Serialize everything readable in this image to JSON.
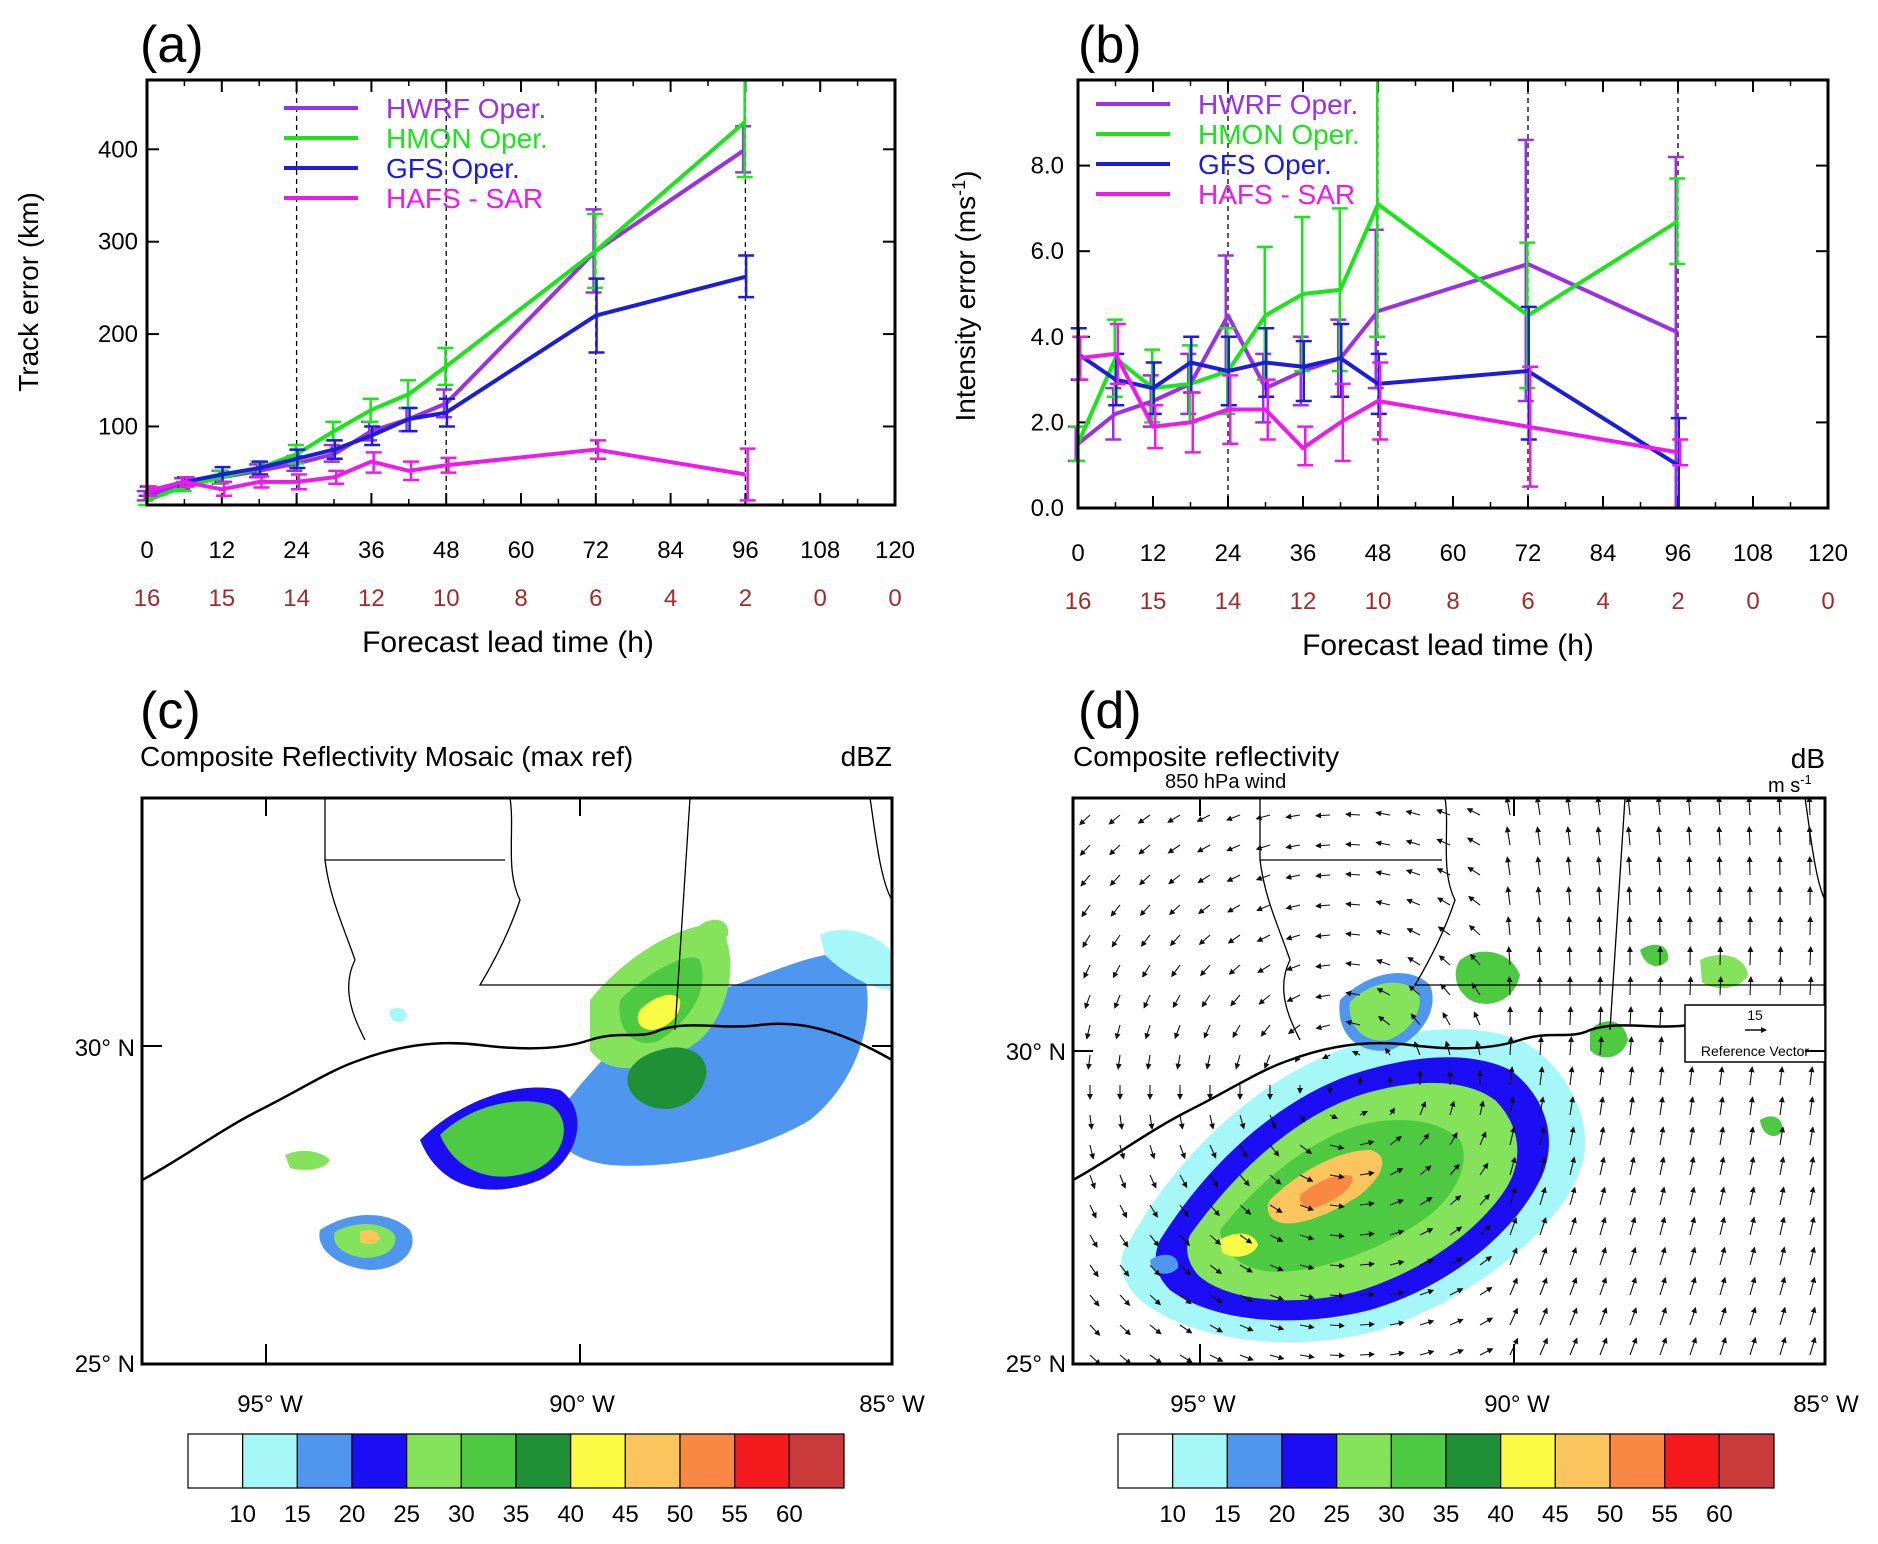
{
  "panels": {
    "a": {
      "label": "(a)"
    },
    "b": {
      "label": "(b)"
    },
    "c": {
      "label": "(c)",
      "title": "Composite Reflectivity Mosaic (max ref)",
      "units": "dBZ"
    },
    "d": {
      "label": "(d)",
      "title": "Composite reflectivity",
      "units": "dB",
      "subtitle": "850 hPa wind",
      "vector_units": "m s",
      "vector_units_exp": "-1",
      "ref_vector_value": "15",
      "ref_vector_label": "Reference Vector"
    }
  },
  "map": {
    "lat_labels": [
      "30° N",
      "25° N"
    ],
    "lon_labels": [
      "95° W",
      "90° W",
      "85° W"
    ],
    "colorbar": {
      "labels": [
        "10",
        "15",
        "20",
        "25",
        "30",
        "35",
        "40",
        "45",
        "50",
        "55",
        "60"
      ],
      "colors": [
        "#ffffff",
        "#a6f7f7",
        "#4f97ee",
        "#1c0ef4",
        "#84e35a",
        "#4dc942",
        "#1f9036",
        "#fbfa45",
        "#fbc45c",
        "#f98842",
        "#f4191c",
        "#cb3a3a"
      ]
    }
  },
  "chart_data": [
    {
      "id": "a",
      "type": "line",
      "x": [
        0,
        6,
        12,
        18,
        24,
        30,
        36,
        42,
        48,
        72,
        96
      ],
      "x_ticks": [
        "0",
        "12",
        "24",
        "36",
        "48",
        "60",
        "72",
        "84",
        "96",
        "108",
        "120"
      ],
      "x_tick_values": [
        0,
        12,
        24,
        36,
        48,
        60,
        72,
        84,
        96,
        108,
        120
      ],
      "case_counts": [
        "16",
        "15",
        "14",
        "12",
        "10",
        "8",
        "6",
        "4",
        "2",
        "0",
        "0"
      ],
      "xlim": [
        0,
        120
      ],
      "ylim": [
        15,
        475
      ],
      "y_ticks": [
        "100",
        "200",
        "300",
        "400"
      ],
      "y_tick_values": [
        100,
        200,
        300,
        400
      ],
      "xlabel": "Forecast lead time (h)",
      "ylabel": "Track error (km)",
      "dashed_x": [
        24,
        48,
        72,
        96
      ],
      "legend_position": "upper-left",
      "series": [
        {
          "name": "HWRF Oper.",
          "color": "#9b30e6",
          "values": [
            25,
            38,
            45,
            52,
            60,
            70,
            95,
            108,
            125,
            290,
            400
          ],
          "err_lo": [
            20,
            32,
            38,
            45,
            52,
            62,
            85,
            95,
            110,
            245,
            375
          ],
          "err_hi": [
            30,
            44,
            52,
            59,
            68,
            80,
            105,
            120,
            140,
            335,
            425
          ]
        },
        {
          "name": "HMON Oper.",
          "color": "#19e619",
          "values": [
            20,
            35,
            45,
            55,
            70,
            95,
            118,
            135,
            165,
            290,
            430
          ],
          "err_lo": [
            15,
            30,
            38,
            48,
            60,
            85,
            105,
            120,
            145,
            250,
            370
          ],
          "err_hi": [
            25,
            40,
            52,
            62,
            80,
            105,
            130,
            150,
            185,
            330,
            490
          ]
        },
        {
          "name": "GFS Oper.",
          "color": "#1c1cdc",
          "values": [
            30,
            40,
            48,
            55,
            65,
            75,
            90,
            108,
            115,
            220,
            262
          ],
          "err_lo": [
            25,
            35,
            40,
            48,
            55,
            65,
            80,
            95,
            100,
            180,
            240
          ],
          "err_hi": [
            35,
            45,
            56,
            62,
            75,
            85,
            100,
            120,
            130,
            260,
            285
          ]
        },
        {
          "name": "HAFS - SAR",
          "color": "#ee19ee",
          "values": [
            30,
            40,
            32,
            40,
            40,
            45,
            62,
            52,
            58,
            75,
            48
          ],
          "err_lo": [
            25,
            35,
            25,
            34,
            32,
            38,
            50,
            42,
            50,
            65,
            20
          ],
          "err_hi": [
            35,
            45,
            40,
            46,
            48,
            52,
            72,
            62,
            66,
            85,
            76
          ]
        }
      ]
    },
    {
      "id": "b",
      "type": "line",
      "x": [
        0,
        6,
        12,
        18,
        24,
        30,
        36,
        42,
        48,
        72,
        96
      ],
      "x_ticks": [
        "0",
        "12",
        "24",
        "36",
        "48",
        "60",
        "72",
        "84",
        "96",
        "108",
        "120"
      ],
      "x_tick_values": [
        0,
        12,
        24,
        36,
        48,
        60,
        72,
        84,
        96,
        108,
        120
      ],
      "case_counts": [
        "16",
        "15",
        "14",
        "12",
        "10",
        "8",
        "6",
        "4",
        "2",
        "0",
        "0"
      ],
      "xlim": [
        0,
        120
      ],
      "ylim": [
        0,
        10
      ],
      "y_ticks": [
        "0.0",
        "2.0",
        "4.0",
        "6.0",
        "8.0"
      ],
      "y_tick_values": [
        0,
        2,
        4,
        6,
        8
      ],
      "xlabel": "Forecast lead time (h)",
      "ylabel": "Intensity error (ms",
      "ylabel_exp": "-1",
      "ylabel_suffix": ")",
      "dashed_x": [
        24,
        48,
        72,
        96
      ],
      "legend_position": "upper-left",
      "series": [
        {
          "name": "HWRF Oper.",
          "color": "#9b30e6",
          "values": [
            1.5,
            2.2,
            2.5,
            2.9,
            4.5,
            2.8,
            3.2,
            3.5,
            4.6,
            5.7,
            4.1
          ],
          "err_lo": [
            1.1,
            1.6,
            1.9,
            2.2,
            3.2,
            2.0,
            2.4,
            2.6,
            2.8,
            2.5,
            0.0
          ],
          "err_hi": [
            1.9,
            2.8,
            3.1,
            3.6,
            5.9,
            3.6,
            4.0,
            4.4,
            6.5,
            8.6,
            8.2
          ]
        },
        {
          "name": "HMON Oper.",
          "color": "#19e619",
          "values": [
            1.5,
            3.5,
            2.8,
            2.9,
            3.2,
            4.5,
            5.0,
            5.1,
            7.1,
            4.5,
            6.7
          ],
          "err_lo": [
            1.1,
            2.6,
            2.0,
            2.0,
            2.2,
            3.0,
            3.2,
            3.2,
            4.0,
            2.8,
            5.7
          ],
          "err_hi": [
            1.9,
            4.4,
            3.7,
            3.8,
            4.2,
            6.1,
            6.8,
            7.0,
            10.0,
            6.2,
            7.7
          ]
        },
        {
          "name": "GFS Oper.",
          "color": "#1c1cdc",
          "values": [
            3.6,
            3.0,
            2.8,
            3.4,
            3.2,
            3.4,
            3.3,
            3.5,
            2.9,
            3.2,
            1.0
          ],
          "err_lo": [
            3.0,
            2.4,
            2.2,
            2.7,
            2.4,
            2.6,
            2.5,
            2.6,
            2.2,
            1.6,
            0.0
          ],
          "err_hi": [
            4.2,
            3.6,
            3.4,
            4.0,
            4.0,
            4.2,
            3.9,
            4.3,
            3.6,
            4.7,
            2.1
          ]
        },
        {
          "name": "HAFS - SAR",
          "color": "#ee19ee",
          "values": [
            3.5,
            3.6,
            1.9,
            2.0,
            2.3,
            2.3,
            1.4,
            2.0,
            2.5,
            1.9,
            1.3
          ],
          "err_lo": [
            3.0,
            2.9,
            1.4,
            1.3,
            1.5,
            1.6,
            1.0,
            1.1,
            1.6,
            0.5,
            1.0
          ],
          "err_hi": [
            4.0,
            4.3,
            2.4,
            2.7,
            3.1,
            3.0,
            1.9,
            2.9,
            3.4,
            3.3,
            1.6
          ]
        }
      ]
    }
  ]
}
